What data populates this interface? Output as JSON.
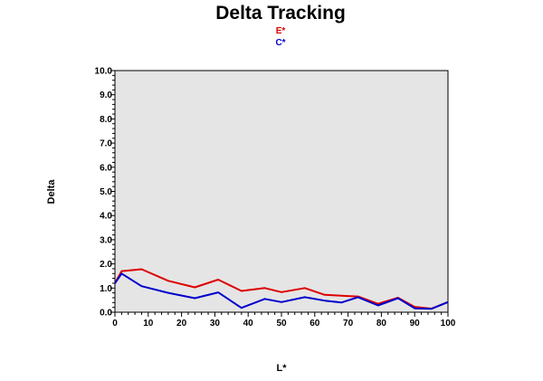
{
  "chart_data": {
    "type": "line",
    "title": "Delta Tracking",
    "xlabel": "L*",
    "ylabel": "Delta",
    "xlim": [
      0,
      100
    ],
    "ylim": [
      0,
      10
    ],
    "x_ticks": [
      "0",
      "10",
      "20",
      "30",
      "40",
      "50",
      "60",
      "70",
      "80",
      "90",
      "100"
    ],
    "y_ticks": [
      "0.0",
      "1.0",
      "2.0",
      "3.0",
      "4.0",
      "5.0",
      "6.0",
      "7.0",
      "8.0",
      "9.0",
      "10.0"
    ],
    "grid": false,
    "legend_position": "top-center",
    "plot_background": "#e5e5e5",
    "series": [
      {
        "name": "E*",
        "color": "#dd0000",
        "x": [
          0,
          2,
          8,
          16,
          24,
          31,
          38,
          45,
          50,
          57,
          63,
          68,
          73,
          79,
          85,
          90,
          95,
          100
        ],
        "y": [
          1.2,
          1.7,
          1.78,
          1.3,
          1.03,
          1.35,
          0.88,
          1.0,
          0.83,
          1.0,
          0.72,
          0.68,
          0.65,
          0.35,
          0.6,
          0.22,
          0.15,
          0.42
        ]
      },
      {
        "name": "C*",
        "color": "#0000cc",
        "x": [
          0,
          2,
          8,
          16,
          24,
          31,
          38,
          45,
          50,
          57,
          63,
          68,
          73,
          79,
          85,
          90,
          95,
          100
        ],
        "y": [
          1.2,
          1.6,
          1.08,
          0.8,
          0.58,
          0.82,
          0.18,
          0.55,
          0.42,
          0.62,
          0.48,
          0.4,
          0.62,
          0.28,
          0.58,
          0.16,
          0.14,
          0.42
        ]
      }
    ]
  }
}
